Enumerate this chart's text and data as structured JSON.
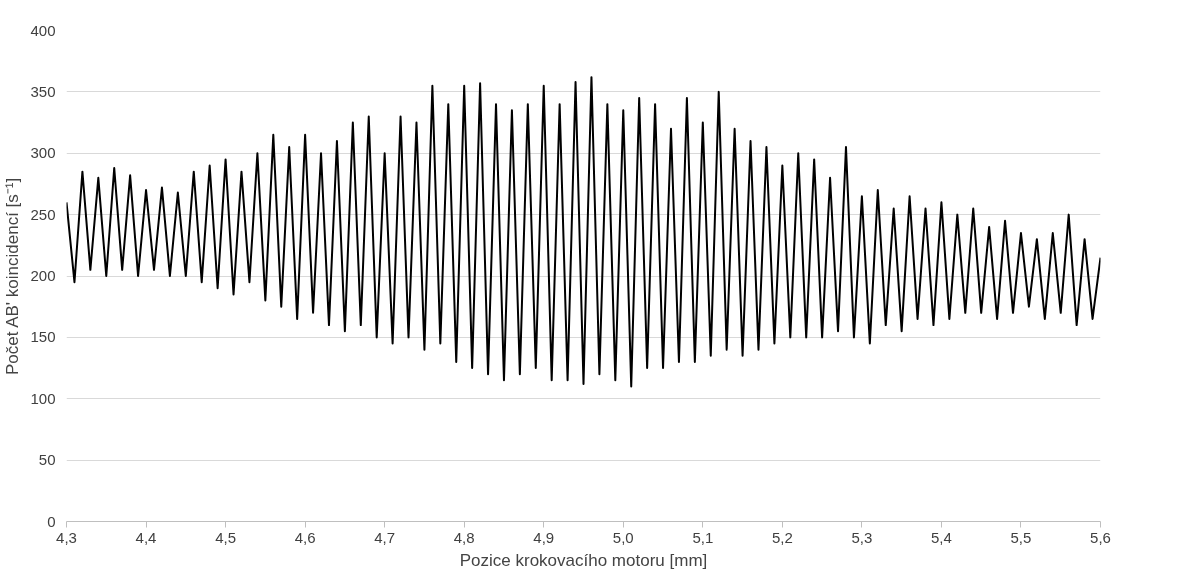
{
  "chart_data": {
    "type": "line",
    "xlabel": "Pozice krokovacího motoru [mm]",
    "ylabel": "Počet AB' koincidencí [s⁻¹]",
    "xlim": [
      4.3,
      5.6
    ],
    "ylim": [
      0,
      400
    ],
    "xticks": [
      {
        "value": 4.3,
        "label": "4,3"
      },
      {
        "value": 4.4,
        "label": "4,4"
      },
      {
        "value": 4.5,
        "label": "4,5"
      },
      {
        "value": 4.6,
        "label": "4,6"
      },
      {
        "value": 4.7,
        "label": "4,7"
      },
      {
        "value": 4.8,
        "label": "4,8"
      },
      {
        "value": 4.9,
        "label": "4,9"
      },
      {
        "value": 5.0,
        "label": "5,0"
      },
      {
        "value": 5.1,
        "label": "5,1"
      },
      {
        "value": 5.2,
        "label": "5,2"
      },
      {
        "value": 5.3,
        "label": "5,3"
      },
      {
        "value": 5.4,
        "label": "5,4"
      },
      {
        "value": 5.5,
        "label": "5,5"
      },
      {
        "value": 5.6,
        "label": "5,6"
      }
    ],
    "yticks": [
      0,
      50,
      100,
      150,
      200,
      250,
      300,
      350,
      400
    ],
    "grid": "y",
    "marker": "none",
    "line_style": "solid",
    "series": [
      {
        "color": "#000000",
        "x": [
          4.3,
          4.31,
          4.32,
          4.33,
          4.34,
          4.35,
          4.36,
          4.37,
          4.38,
          4.39,
          4.4,
          4.41,
          4.42,
          4.43,
          4.44,
          4.45,
          4.46,
          4.47,
          4.48,
          4.49,
          4.5,
          4.51,
          4.52,
          4.53,
          4.54,
          4.55,
          4.56,
          4.57,
          4.58,
          4.59,
          4.6,
          4.61,
          4.62,
          4.63,
          4.64,
          4.65,
          4.66,
          4.67,
          4.68,
          4.69,
          4.7,
          4.71,
          4.72,
          4.73,
          4.74,
          4.75,
          4.76,
          4.77,
          4.78,
          4.79,
          4.8,
          4.81,
          4.82,
          4.83,
          4.84,
          4.85,
          4.86,
          4.87,
          4.88,
          4.89,
          4.9,
          4.91,
          4.92,
          4.93,
          4.94,
          4.95,
          4.96,
          4.97,
          4.98,
          4.99,
          5.0,
          5.01,
          5.02,
          5.03,
          5.04,
          5.05,
          5.06,
          5.07,
          5.08,
          5.09,
          5.1,
          5.11,
          5.12,
          5.13,
          5.14,
          5.15,
          5.16,
          5.17,
          5.18,
          5.19,
          5.2,
          5.21,
          5.22,
          5.23,
          5.24,
          5.25,
          5.26,
          5.27,
          5.28,
          5.29,
          5.3,
          5.31,
          5.32,
          5.33,
          5.34,
          5.35,
          5.36,
          5.37,
          5.38,
          5.39,
          5.4,
          5.41,
          5.42,
          5.43,
          5.44,
          5.45,
          5.46,
          5.47,
          5.48,
          5.49,
          5.5,
          5.51,
          5.52,
          5.53,
          5.54,
          5.55,
          5.56,
          5.57,
          5.58,
          5.59,
          5.6
        ],
        "values": [
          260,
          195,
          285,
          205,
          280,
          200,
          288,
          205,
          282,
          200,
          270,
          205,
          272,
          200,
          268,
          200,
          285,
          195,
          290,
          190,
          295,
          185,
          285,
          195,
          300,
          180,
          315,
          175,
          305,
          165,
          315,
          170,
          300,
          160,
          310,
          155,
          325,
          160,
          330,
          150,
          300,
          145,
          330,
          150,
          325,
          140,
          355,
          145,
          340,
          130,
          355,
          125,
          357,
          120,
          340,
          115,
          335,
          120,
          340,
          125,
          355,
          115,
          340,
          115,
          358,
          112,
          362,
          120,
          340,
          115,
          335,
          110,
          345,
          125,
          340,
          125,
          320,
          130,
          345,
          130,
          325,
          135,
          350,
          140,
          320,
          135,
          310,
          140,
          305,
          145,
          290,
          150,
          300,
          150,
          295,
          150,
          280,
          155,
          305,
          150,
          265,
          145,
          270,
          160,
          255,
          155,
          265,
          165,
          255,
          160,
          260,
          165,
          250,
          170,
          255,
          170,
          240,
          165,
          245,
          170,
          235,
          175,
          230,
          165,
          235,
          170,
          250,
          160,
          230,
          165,
          215
        ]
      }
    ]
  }
}
